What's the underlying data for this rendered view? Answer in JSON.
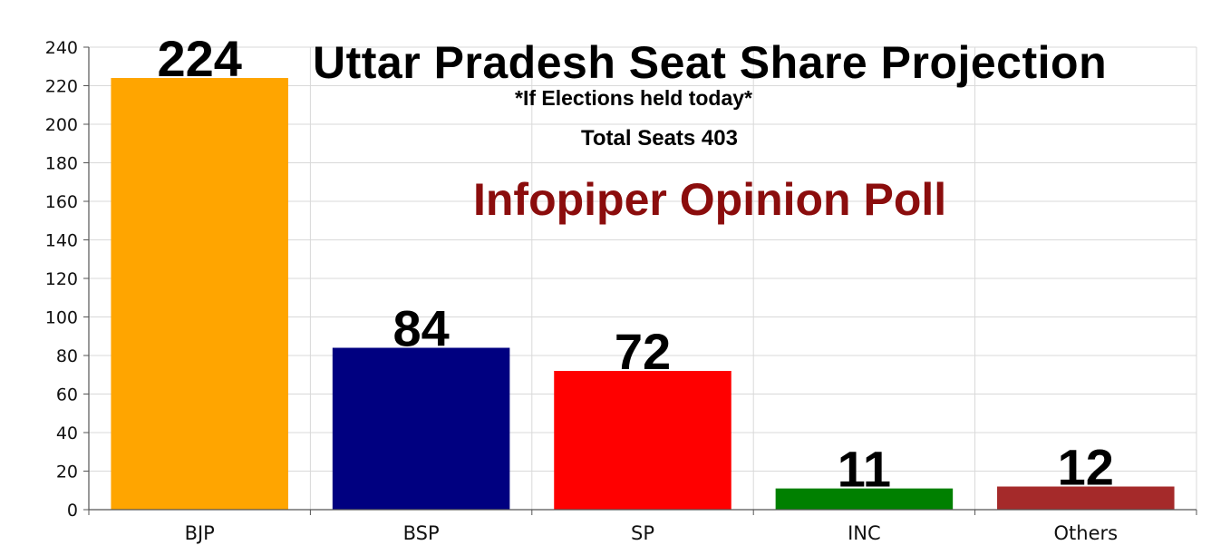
{
  "chart_data": {
    "type": "bar",
    "title": "Uttar Pradesh Seat Share Projection",
    "subtitle": "*If Elections held today*",
    "note": "Total Seats 403",
    "source_label": "Infopiper Opinion Poll",
    "categories": [
      "BJP",
      "BSP",
      "SP",
      "INC",
      "Others"
    ],
    "values": [
      224,
      84,
      72,
      11,
      12
    ],
    "colors": [
      "#ffa500",
      "#000080",
      "#ff0000",
      "#008000",
      "#a52a2a"
    ],
    "data_labels": [
      "224",
      "84",
      "72",
      "11",
      "12"
    ],
    "ylim": [
      0,
      240
    ],
    "yticks": [
      0,
      20,
      40,
      60,
      80,
      100,
      120,
      140,
      160,
      180,
      200,
      220,
      240
    ],
    "grid": true,
    "xlabel": "",
    "ylabel": ""
  }
}
